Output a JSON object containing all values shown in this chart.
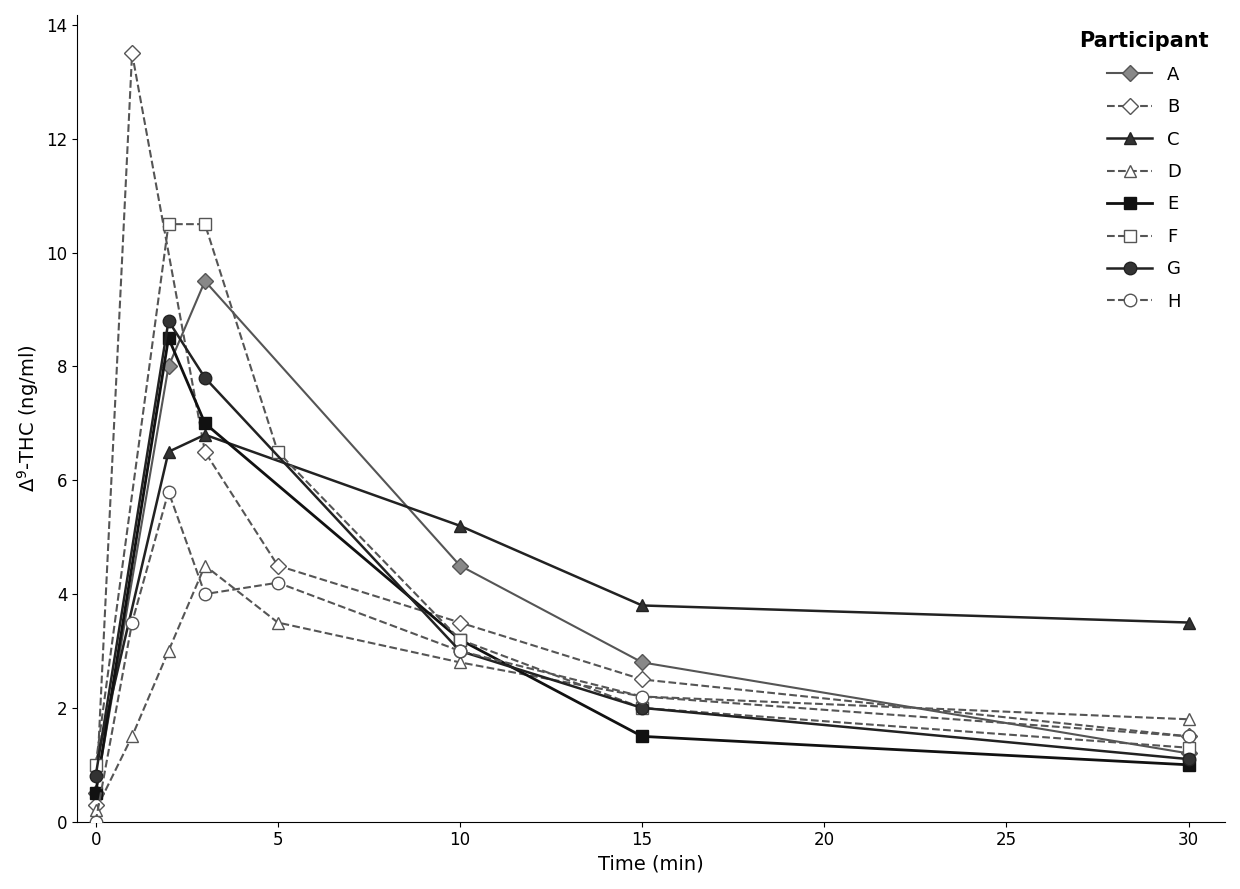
{
  "title": "",
  "xlabel": "Time (min)",
  "ylabel": "Δ9-THC (ng/ml)",
  "legend_title": "Participant",
  "x_ticks": [
    0,
    5,
    10,
    15,
    20,
    25,
    30
  ],
  "xlim": [
    -0.5,
    31
  ],
  "participants": {
    "A": {
      "x": [
        0,
        2,
        3,
        10,
        15,
        30
      ],
      "y": [
        0.5,
        8.0,
        9.5,
        4.5,
        2.8,
        1.2
      ],
      "color": "#555555",
      "linestyle": "-",
      "marker": "D",
      "markerfacecolor": "#888888",
      "markersize": 8,
      "linewidth": 1.5,
      "dashed": false
    },
    "B": {
      "x": [
        0,
        1,
        3,
        5,
        10,
        15,
        30
      ],
      "y": [
        0.3,
        13.5,
        6.5,
        4.5,
        3.5,
        2.5,
        1.5
      ],
      "color": "#555555",
      "linestyle": "--",
      "marker": "D",
      "markerfacecolor": "white",
      "markersize": 8,
      "linewidth": 1.5,
      "dashed": true
    },
    "C": {
      "x": [
        0,
        2,
        3,
        10,
        15,
        30
      ],
      "y": [
        1.0,
        6.5,
        6.8,
        5.2,
        3.8,
        3.5
      ],
      "color": "#222222",
      "linestyle": "-",
      "marker": "^",
      "markerfacecolor": "#333333",
      "markersize": 9,
      "linewidth": 1.8,
      "dashed": false
    },
    "D": {
      "x": [
        0,
        1,
        2,
        3,
        5,
        10,
        15,
        30
      ],
      "y": [
        0.2,
        1.5,
        3.0,
        4.5,
        3.5,
        2.8,
        2.2,
        1.8
      ],
      "color": "#555555",
      "linestyle": "--",
      "marker": "^",
      "markerfacecolor": "white",
      "markersize": 9,
      "linewidth": 1.5,
      "dashed": true
    },
    "E": {
      "x": [
        0,
        2,
        3,
        10,
        15,
        30
      ],
      "y": [
        0.5,
        8.5,
        7.0,
        3.2,
        1.5,
        1.0
      ],
      "color": "#111111",
      "linestyle": "-",
      "marker": "s",
      "markerfacecolor": "#111111",
      "markersize": 9,
      "linewidth": 2.0,
      "dashed": false
    },
    "F": {
      "x": [
        0,
        2,
        3,
        5,
        10,
        15,
        30
      ],
      "y": [
        1.0,
        10.5,
        10.5,
        6.5,
        3.2,
        2.0,
        1.3
      ],
      "color": "#555555",
      "linestyle": "--",
      "marker": "s",
      "markerfacecolor": "white",
      "markersize": 9,
      "linewidth": 1.5,
      "dashed": true
    },
    "G": {
      "x": [
        0,
        2,
        3,
        10,
        15,
        30
      ],
      "y": [
        0.8,
        8.8,
        7.8,
        3.0,
        2.0,
        1.1
      ],
      "color": "#222222",
      "linestyle": "-",
      "marker": "o",
      "markerfacecolor": "#333333",
      "markersize": 9,
      "linewidth": 1.8,
      "dashed": false
    },
    "H": {
      "x": [
        0,
        1,
        2,
        3,
        5,
        10,
        15,
        30
      ],
      "y": [
        0.0,
        3.5,
        5.8,
        4.0,
        4.2,
        3.0,
        2.2,
        1.5
      ],
      "color": "#555555",
      "linestyle": "--",
      "marker": "o",
      "markerfacecolor": "white",
      "markersize": 9,
      "linewidth": 1.5,
      "dashed": true
    }
  },
  "figsize": [
    12.4,
    8.89
  ],
  "dpi": 100,
  "background_color": "#ffffff"
}
